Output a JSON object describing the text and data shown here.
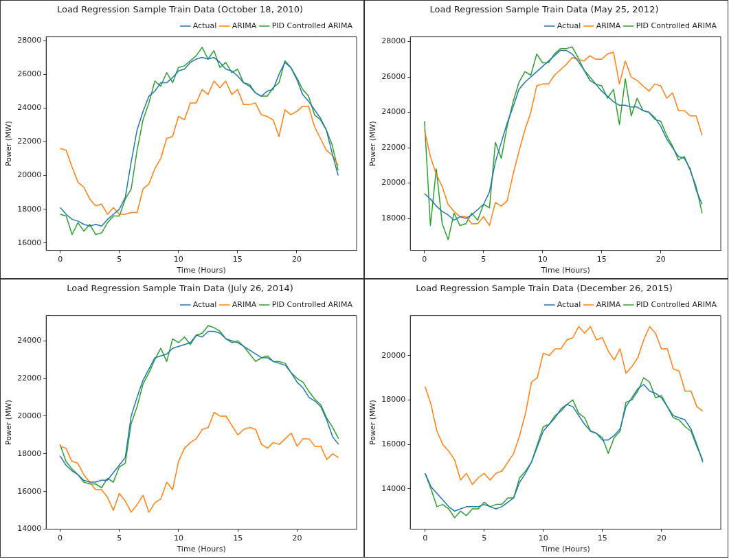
{
  "chart_data": [
    {
      "type": "line",
      "title": "Load Regression Sample Train Data (October 18, 2010)",
      "xlabel": "Time (Hours)",
      "ylabel": "Power (MW)",
      "xlim": [
        -1.19,
        25.06
      ],
      "xticks": [
        0,
        5,
        10,
        15,
        20
      ],
      "ylim": [
        15560,
        28220
      ],
      "yticks": [
        16000,
        18000,
        20000,
        22000,
        24000,
        26000,
        28000
      ],
      "grid": false,
      "legend": "top right",
      "marker": "none",
      "line_style": "solid",
      "x": [
        0,
        0.5,
        1,
        1.5,
        2,
        2.5,
        3,
        3.5,
        4,
        4.5,
        5,
        5.5,
        6,
        6.5,
        7,
        7.5,
        8,
        8.5,
        9,
        9.5,
        10,
        10.5,
        11,
        11.5,
        12,
        12.5,
        13,
        13.5,
        14,
        14.5,
        15,
        15.5,
        16,
        16.5,
        17,
        17.5,
        18,
        18.5,
        19,
        19.5,
        20,
        20.5,
        21,
        21.5,
        22,
        22.5,
        23,
        23.5
      ],
      "series": [
        {
          "name": "Actual",
          "color": "#1f77b4",
          "values": [
            18100,
            17700,
            17400,
            17300,
            17100,
            17000,
            17100,
            17000,
            17400,
            17700,
            18000,
            18700,
            20800,
            22700,
            23800,
            24700,
            25000,
            25500,
            25500,
            25800,
            26200,
            26300,
            26700,
            26900,
            27000,
            26900,
            27000,
            26700,
            26300,
            26200,
            25900,
            25500,
            25300,
            24900,
            24700,
            25000,
            25100,
            26000,
            26700,
            26400,
            25700,
            24800,
            24400,
            23900,
            23400,
            22700,
            21300,
            20000
          ]
        },
        {
          "name": "ARIMA",
          "color": "#ff7f0e",
          "values": [
            21600,
            21500,
            20500,
            19600,
            19300,
            18600,
            18200,
            18300,
            17700,
            18100,
            17700,
            17700,
            17800,
            17800,
            19200,
            19500,
            20400,
            21000,
            22200,
            22300,
            23500,
            23300,
            24300,
            24300,
            25100,
            24800,
            25600,
            25200,
            25600,
            24800,
            25100,
            24200,
            24200,
            24300,
            23600,
            23500,
            23300,
            22300,
            23900,
            23600,
            23800,
            24100,
            24100,
            22900,
            22200,
            21500,
            21200,
            20600
          ]
        },
        {
          "name": "PID Controlled ARIMA",
          "color": "#2ca02c",
          "values": [
            17700,
            17600,
            16500,
            17200,
            16700,
            17100,
            16500,
            16600,
            17200,
            17600,
            17600,
            18600,
            19200,
            21500,
            23300,
            24300,
            25600,
            25300,
            26100,
            25500,
            26400,
            26500,
            26800,
            27100,
            27600,
            26900,
            27400,
            26400,
            26700,
            26100,
            26300,
            25500,
            25400,
            24900,
            24700,
            24700,
            25200,
            25500,
            26800,
            26400,
            25800,
            25100,
            24700,
            23600,
            23300,
            22700,
            21800,
            20300
          ]
        }
      ]
    },
    {
      "type": "line",
      "title": "Load Regression Sample Train Data (May 25, 2012)",
      "xlabel": "Time (Hours)",
      "ylabel": "Power (MW)",
      "xlim": [
        -1.2,
        25.08
      ],
      "xticks": [
        0,
        5,
        10,
        15,
        20
      ],
      "ylim": [
        16195,
        28270
      ],
      "yticks": [
        18000,
        20000,
        22000,
        24000,
        26000,
        28000
      ],
      "grid": false,
      "legend": "top right",
      "marker": "none",
      "line_style": "solid",
      "x": [
        0,
        0.5,
        1,
        1.5,
        2,
        2.5,
        3,
        3.5,
        4,
        4.5,
        5,
        5.5,
        6,
        6.5,
        7,
        7.5,
        8,
        8.5,
        9,
        9.5,
        10,
        10.5,
        11,
        11.5,
        12,
        12.5,
        13,
        13.5,
        14,
        14.5,
        15,
        15.5,
        16,
        16.5,
        17,
        17.5,
        18,
        18.5,
        19,
        19.5,
        20,
        20.5,
        21,
        21.5,
        22,
        22.5,
        23,
        23.5
      ],
      "series": [
        {
          "name": "Actual",
          "color": "#1f77b4",
          "values": [
            19400,
            19100,
            18700,
            18400,
            18200,
            17900,
            18100,
            18000,
            18200,
            18500,
            18800,
            19500,
            21200,
            22300,
            23400,
            24300,
            25300,
            25700,
            26000,
            26300,
            26600,
            26900,
            27200,
            27500,
            27500,
            27300,
            26900,
            26400,
            25800,
            25600,
            25200,
            24900,
            24600,
            24400,
            24400,
            24300,
            24300,
            24100,
            24000,
            23700,
            23200,
            22500,
            22000,
            21500,
            21400,
            20800,
            19600,
            18800
          ]
        },
        {
          "name": "ARIMA",
          "color": "#ff7f0e",
          "values": [
            23000,
            21500,
            20500,
            19800,
            18800,
            18400,
            18100,
            18100,
            17700,
            17700,
            18100,
            17600,
            18900,
            18700,
            19000,
            20500,
            21800,
            23000,
            24000,
            25500,
            25600,
            25600,
            26100,
            26400,
            26700,
            27100,
            27000,
            26900,
            27200,
            27000,
            27000,
            27300,
            27400,
            25600,
            26900,
            26000,
            25800,
            25500,
            25200,
            25600,
            25500,
            24800,
            25100,
            24100,
            24100,
            23800,
            23800,
            22700
          ]
        },
        {
          "name": "PID Controlled ARIMA",
          "color": "#2ca02c",
          "values": [
            23500,
            17600,
            20800,
            17700,
            16800,
            18300,
            17600,
            17700,
            18300,
            17900,
            18800,
            18600,
            22300,
            21400,
            23200,
            24600,
            25700,
            26300,
            26100,
            27300,
            26800,
            26800,
            27300,
            27600,
            27600,
            27700,
            27100,
            26400,
            26000,
            25600,
            25500,
            24800,
            25300,
            23300,
            25900,
            23800,
            24800,
            24100,
            24000,
            23600,
            23500,
            22700,
            22100,
            21300,
            21500,
            20700,
            19800,
            18300
          ]
        }
      ]
    },
    {
      "type": "line",
      "title": "Load Regression Sample Train Data (July 26, 2014)",
      "xlabel": "Time (Hours)",
      "ylabel": "Power (MW)",
      "xlim": [
        -1.17,
        25.02
      ],
      "xticks": [
        0,
        5,
        10,
        15,
        20
      ],
      "ylim": [
        14000,
        25335
      ],
      "yticks": [
        14000,
        16000,
        18000,
        20000,
        22000,
        24000
      ],
      "grid": false,
      "legend": "top right",
      "marker": "none",
      "line_style": "solid",
      "x": [
        0,
        0.5,
        1,
        1.5,
        2,
        2.5,
        3,
        3.5,
        4,
        4.5,
        5,
        5.5,
        6,
        6.5,
        7,
        7.5,
        8,
        8.5,
        9,
        9.5,
        10,
        10.5,
        11,
        11.5,
        12,
        12.5,
        13,
        13.5,
        14,
        14.5,
        15,
        15.5,
        16,
        16.5,
        17,
        17.5,
        18,
        18.5,
        19,
        19.5,
        20,
        20.5,
        21,
        21.5,
        22,
        22.5,
        23,
        23.5
      ],
      "series": [
        {
          "name": "Actual",
          "color": "#1f77b4",
          "values": [
            17900,
            17400,
            17100,
            16900,
            16600,
            16500,
            16500,
            16600,
            16600,
            17000,
            17400,
            17800,
            20000,
            21000,
            21900,
            22500,
            23100,
            23200,
            23300,
            23600,
            23700,
            23800,
            23900,
            24300,
            24200,
            24500,
            24500,
            24400,
            24100,
            24000,
            23900,
            23700,
            23500,
            23300,
            23100,
            23100,
            22900,
            22800,
            22700,
            22300,
            21800,
            21500,
            21000,
            20800,
            20500,
            19800,
            18900,
            18500
          ]
        },
        {
          "name": "ARIMA",
          "color": "#ff7f0e",
          "values": [
            18400,
            18300,
            17600,
            17500,
            16900,
            16500,
            16100,
            16100,
            15700,
            15000,
            15900,
            15500,
            14900,
            15300,
            15800,
            14900,
            15400,
            15600,
            16500,
            16100,
            17600,
            18300,
            18600,
            18800,
            19300,
            19400,
            20200,
            20000,
            20000,
            19500,
            19000,
            19300,
            19400,
            19300,
            18500,
            18300,
            18600,
            18500,
            18800,
            19100,
            18400,
            18800,
            18800,
            18400,
            18400,
            17700,
            18000,
            17800
          ]
        },
        {
          "name": "PID Controlled ARIMA",
          "color": "#2ca02c",
          "values": [
            18500,
            17600,
            17200,
            16900,
            16500,
            16400,
            16400,
            16200,
            16700,
            16500,
            17300,
            17500,
            19600,
            20500,
            21700,
            22300,
            23000,
            23600,
            22900,
            24100,
            23900,
            24200,
            23800,
            24300,
            24400,
            24800,
            24700,
            24500,
            24100,
            23900,
            24000,
            23700,
            23300,
            22900,
            23100,
            23200,
            22900,
            22900,
            22800,
            22300,
            22000,
            21800,
            21300,
            20900,
            20600,
            19900,
            19400,
            18800
          ]
        }
      ]
    },
    {
      "type": "line",
      "title": "Load Regression Sample Train Data (December 26, 2015)",
      "xlabel": "Time (Hours)",
      "ylabel": "Power (MW)",
      "xlim": [
        -1.25,
        25.02
      ],
      "xticks": [
        0,
        5,
        10,
        15,
        20
      ],
      "ylim": [
        12188,
        21793
      ],
      "yticks": [
        14000,
        16000,
        18000,
        20000
      ],
      "grid": false,
      "legend": "top right",
      "marker": "none",
      "line_style": "solid",
      "x": [
        0,
        0.5,
        1,
        1.5,
        2,
        2.5,
        3,
        3.5,
        4,
        4.5,
        5,
        5.5,
        6,
        6.5,
        7,
        7.5,
        8,
        8.5,
        9,
        9.5,
        10,
        10.5,
        11,
        11.5,
        12,
        12.5,
        13,
        13.5,
        14,
        14.5,
        15,
        15.5,
        16,
        16.5,
        17,
        17.5,
        18,
        18.5,
        19,
        19.5,
        20,
        20.5,
        21,
        21.5,
        22,
        22.5,
        23,
        23.5
      ],
      "series": [
        {
          "name": "Actual",
          "color": "#1f77b4",
          "values": [
            14700,
            14100,
            13800,
            13500,
            13200,
            13000,
            13100,
            13200,
            13200,
            13200,
            13300,
            13200,
            13100,
            13200,
            13400,
            13600,
            14300,
            14700,
            15200,
            15900,
            16600,
            16900,
            17200,
            17600,
            17800,
            17700,
            17300,
            16900,
            16600,
            16500,
            16200,
            16200,
            16400,
            16700,
            17700,
            18100,
            18500,
            18700,
            18400,
            18300,
            18100,
            17700,
            17300,
            17200,
            17100,
            16700,
            16000,
            15200
          ]
        },
        {
          "name": "ARIMA",
          "color": "#ff7f0e",
          "values": [
            18600,
            17800,
            16600,
            16000,
            15700,
            15300,
            14400,
            14700,
            14200,
            14500,
            14700,
            14400,
            14700,
            14800,
            15200,
            15600,
            16400,
            17400,
            18800,
            19000,
            20100,
            20000,
            20300,
            20300,
            20700,
            20800,
            21300,
            21000,
            21300,
            20700,
            20800,
            20200,
            19800,
            20300,
            19200,
            19500,
            19900,
            20700,
            21300,
            21000,
            20300,
            20300,
            19400,
            19300,
            18400,
            18400,
            17700,
            17500
          ]
        },
        {
          "name": "PID Controlled ARIMA",
          "color": "#2ca02c",
          "values": [
            14700,
            14000,
            13200,
            13300,
            13100,
            12700,
            13000,
            12800,
            13100,
            13100,
            13400,
            13200,
            13300,
            13300,
            13600,
            13600,
            14500,
            14800,
            15200,
            16000,
            16800,
            16900,
            17300,
            17500,
            17800,
            18000,
            17400,
            17200,
            16600,
            16500,
            16300,
            15600,
            16300,
            16600,
            17900,
            18000,
            18400,
            19000,
            18800,
            18100,
            18200,
            17700,
            17200,
            17100,
            16800,
            16600,
            15900,
            15300
          ]
        }
      ]
    }
  ]
}
